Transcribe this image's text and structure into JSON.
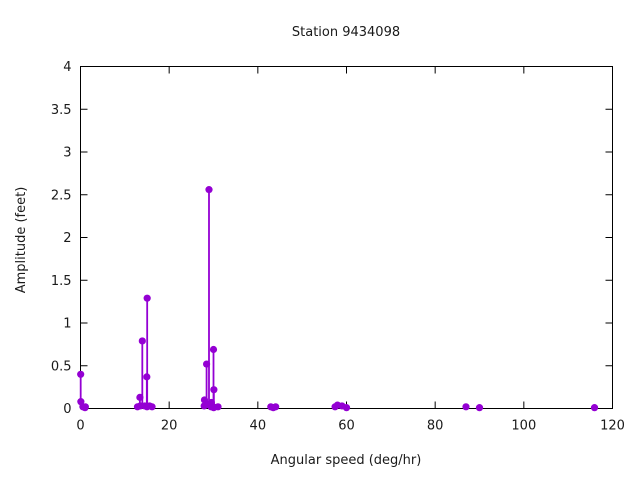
{
  "title": "Station 9434098",
  "chart_data": {
    "type": "stem",
    "title": "Station 9434098",
    "xlabel": "Angular speed (deg/hr)",
    "ylabel": "Amplitude (feet)",
    "xlim": [
      0,
      120
    ],
    "ylim": [
      0,
      4
    ],
    "xticks": [
      0,
      20,
      40,
      60,
      80,
      100,
      120
    ],
    "yticks": [
      0,
      0.5,
      1,
      1.5,
      2,
      2.5,
      3,
      3.5,
      4
    ],
    "grid": false,
    "legend": "none",
    "marker_color": "#9400d3",
    "axis_color": "#000000",
    "background": "#ffffff",
    "x": [
      0.041,
      0.082,
      0.544,
      1.016,
      1.098,
      12.854,
      13.399,
      13.472,
      13.943,
      14.497,
      14.959,
      15.0,
      15.041,
      15.585,
      16.139,
      27.895,
      27.968,
      28.44,
      28.513,
      28.984,
      29.456,
      29.528,
      29.959,
      30.0,
      30.041,
      30.082,
      31.016,
      42.927,
      43.476,
      44.025,
      57.424,
      57.968,
      58.984,
      60.0,
      86.952,
      90.0,
      115.942
    ],
    "y": [
      0.4,
      0.08,
      0.02,
      0.01,
      0.02,
      0.02,
      0.13,
      0.03,
      0.79,
      0.03,
      0.37,
      0.02,
      1.29,
      0.03,
      0.02,
      0.03,
      0.1,
      0.52,
      0.05,
      2.56,
      0.02,
      0.07,
      0.02,
      0.69,
      0.01,
      0.22,
      0.02,
      0.02,
      0.01,
      0.02,
      0.02,
      0.04,
      0.03,
      0.01,
      0.02,
      0.01,
      0.01
    ]
  }
}
